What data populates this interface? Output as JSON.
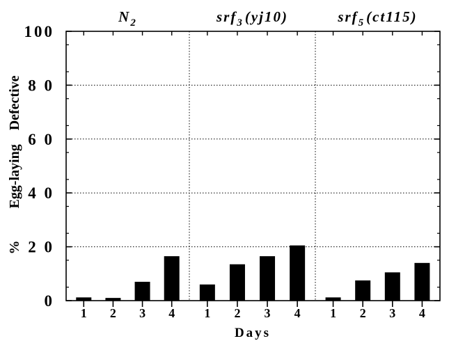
{
  "chart_data": {
    "type": "bar",
    "ylabel_parts": [
      "%",
      "Egg-laying",
      "Defective"
    ],
    "xlabel": "Days",
    "ylim": [
      0,
      100
    ],
    "y_ticks": [
      "0",
      "2 0",
      "4 0",
      "6 0",
      "8 0",
      "100"
    ],
    "y_tick_values": [
      0,
      20,
      40,
      60,
      80,
      100
    ],
    "grid": "horizontal dotted",
    "panels": [
      {
        "title_main": "N",
        "title_sub": "2",
        "title_rest": "",
        "categories": [
          "1",
          "2",
          "3",
          "4"
        ],
        "values": [
          1.2,
          1.0,
          7.0,
          16.5
        ]
      },
      {
        "title_main": "srf",
        "title_sub": "3",
        "title_rest": "(yj10)",
        "categories": [
          "1",
          "2",
          "3",
          "4"
        ],
        "values": [
          6.0,
          13.5,
          16.5,
          20.5
        ]
      },
      {
        "title_main": "srf",
        "title_sub": "5",
        "title_rest": "(ct115)",
        "categories": [
          "1",
          "2",
          "3",
          "4"
        ],
        "values": [
          1.2,
          7.5,
          10.5,
          14.0
        ]
      }
    ],
    "bar_color": "#000000"
  }
}
